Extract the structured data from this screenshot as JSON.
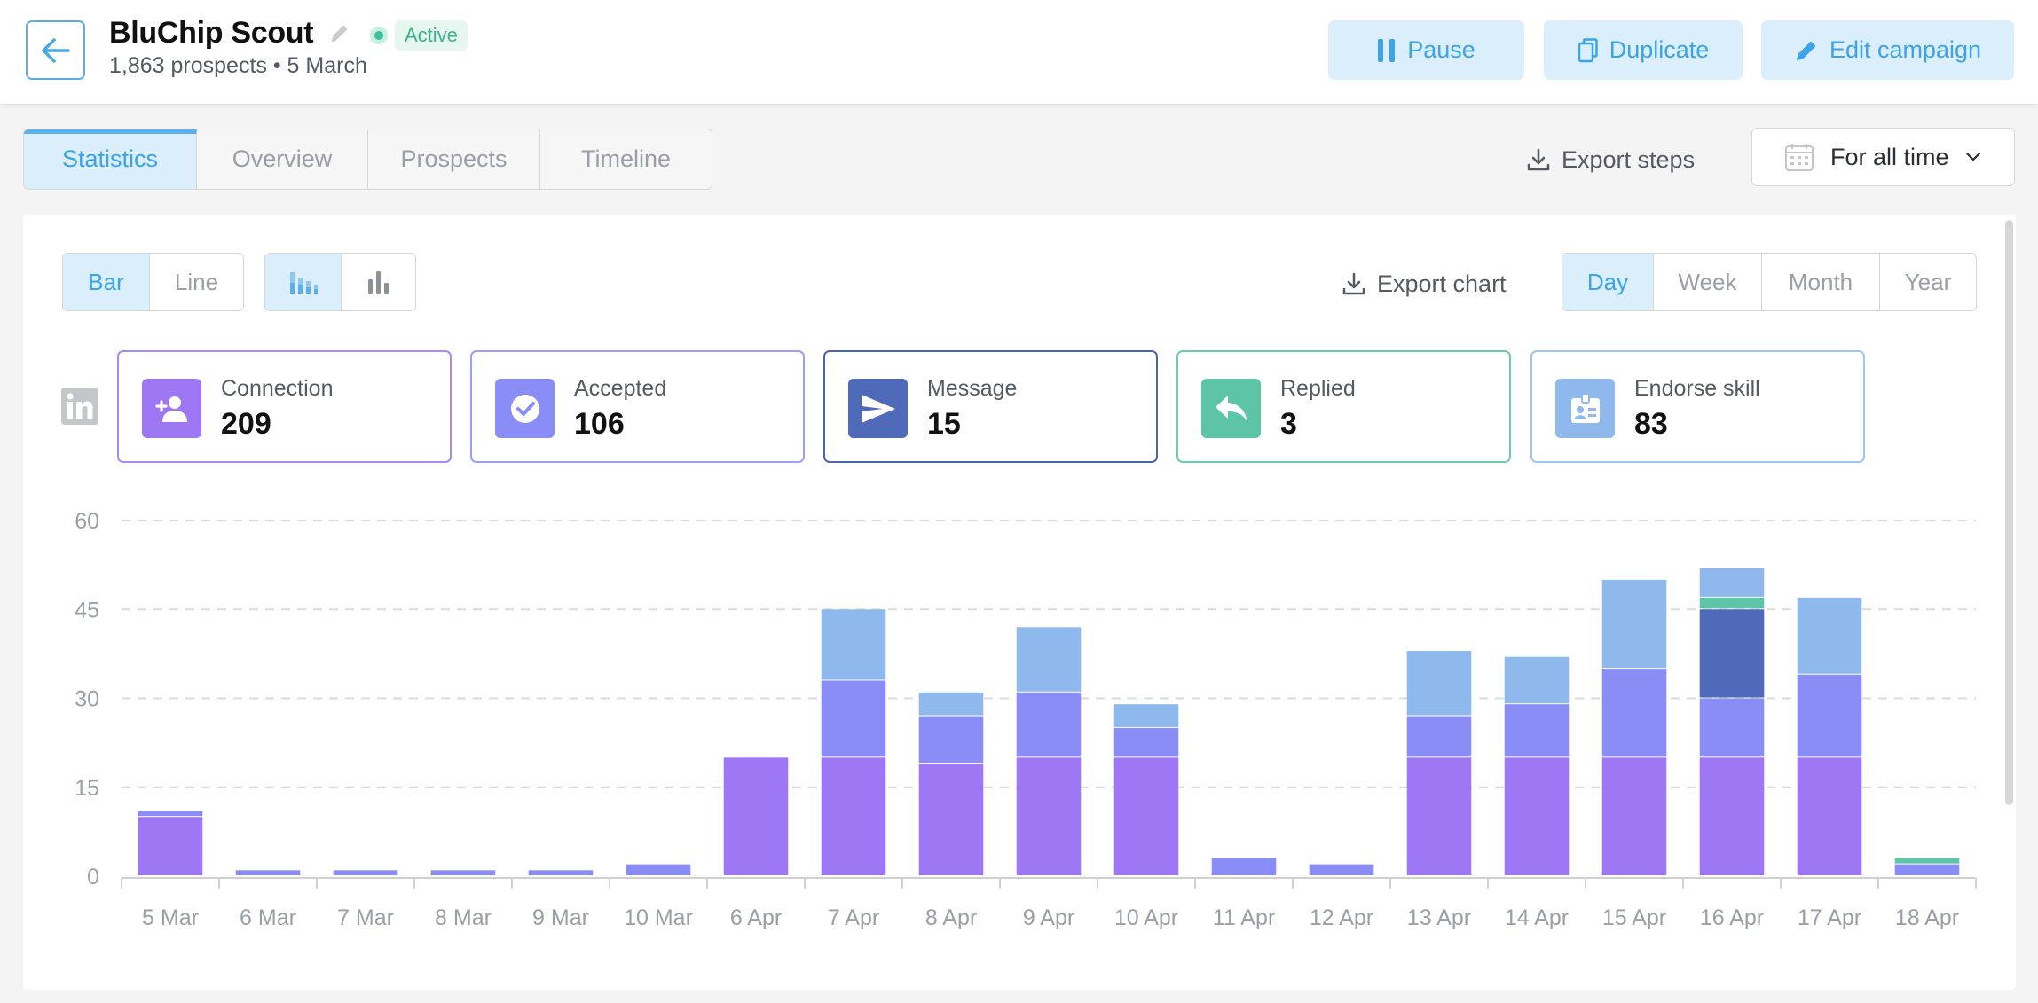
{
  "header": {
    "title": "BluChip Scout",
    "status": "Active",
    "subtitle": "1,863 prospects • 5 March",
    "buttons": {
      "pause": "Pause",
      "duplicate": "Duplicate",
      "edit": "Edit campaign"
    }
  },
  "tabs": [
    "Statistics",
    "Overview",
    "Prospects",
    "Timeline"
  ],
  "toolbar": {
    "export_steps": "Export steps",
    "date_filter": "For all time"
  },
  "chart_controls": {
    "type_toggle": [
      "Bar",
      "Line"
    ],
    "period_toggle": [
      "Day",
      "Week",
      "Month",
      "Year"
    ],
    "export_chart": "Export chart"
  },
  "stats": [
    {
      "label": "Connection",
      "value": "209",
      "color": "#9d77f4",
      "icon": "person-add-icon"
    },
    {
      "label": "Accepted",
      "value": "106",
      "color": "#8a8df5",
      "icon": "check-circle-icon"
    },
    {
      "label": "Message",
      "value": "15",
      "color": "#4f6ab9",
      "icon": "send-icon"
    },
    {
      "label": "Replied",
      "value": "3",
      "color": "#5ec4a6",
      "icon": "reply-icon"
    },
    {
      "label": "Endorse skill",
      "value": "83",
      "color": "#8fb9ec",
      "icon": "badge-icon"
    }
  ],
  "chart_data": {
    "type": "bar",
    "stacked": true,
    "categories": [
      "5 Mar",
      "6 Mar",
      "7 Mar",
      "8 Mar",
      "9 Mar",
      "10 Mar",
      "6 Apr",
      "7 Apr",
      "8 Apr",
      "9 Apr",
      "10 Apr",
      "11 Apr",
      "12 Apr",
      "13 Apr",
      "14 Apr",
      "15 Apr",
      "16 Apr",
      "17 Apr",
      "18 Apr"
    ],
    "ylim": [
      0,
      60
    ],
    "yticks": [
      0,
      15,
      30,
      45,
      60
    ],
    "grid": true,
    "series": [
      {
        "name": "Connection",
        "color": "#9d77f4",
        "values": [
          10,
          0,
          0,
          0,
          0,
          0,
          20,
          20,
          19,
          20,
          20,
          0,
          0,
          20,
          20,
          20,
          20,
          20,
          0
        ]
      },
      {
        "name": "Accepted",
        "color": "#8a8df5",
        "values": [
          1,
          1,
          1,
          1,
          1,
          2,
          0,
          13,
          8,
          11,
          5,
          3,
          2,
          7,
          9,
          15,
          10,
          14,
          2
        ]
      },
      {
        "name": "Message",
        "color": "#4f6ab9",
        "values": [
          0,
          0,
          0,
          0,
          0,
          0,
          0,
          0,
          0,
          0,
          0,
          0,
          0,
          0,
          0,
          0,
          15,
          0,
          0
        ]
      },
      {
        "name": "Replied",
        "color": "#5ec4a6",
        "values": [
          0,
          0,
          0,
          0,
          0,
          0,
          0,
          0,
          0,
          0,
          0,
          0,
          0,
          0,
          0,
          0,
          2,
          0,
          1
        ]
      },
      {
        "name": "Endorse skill",
        "color": "#8fb9ec",
        "values": [
          0,
          0,
          0,
          0,
          0,
          0,
          0,
          12,
          4,
          11,
          4,
          0,
          0,
          11,
          8,
          15,
          5,
          13,
          0
        ]
      }
    ]
  }
}
